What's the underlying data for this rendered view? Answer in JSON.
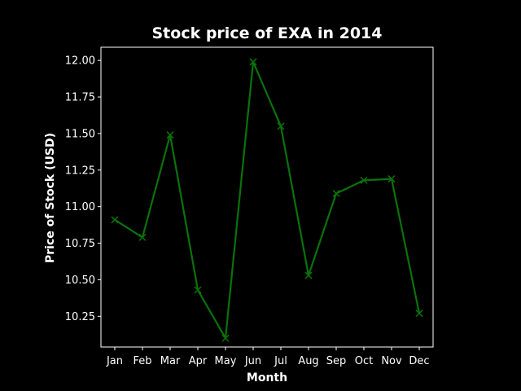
{
  "chart_data": {
    "type": "line",
    "title": "Stock price of EXA in 2014",
    "xlabel": "Month",
    "ylabel": "Price of Stock (USD)",
    "categories": [
      "Jan",
      "Feb",
      "Mar",
      "Apr",
      "May",
      "Jun",
      "Jul",
      "Aug",
      "Sep",
      "Oct",
      "Nov",
      "Dec"
    ],
    "series": [
      {
        "values": [
          10.91,
          10.79,
          11.49,
          10.43,
          10.1,
          11.99,
          11.55,
          10.53,
          11.09,
          11.18,
          11.19,
          10.27
        ],
        "color": "#0a720a",
        "marker": "x"
      }
    ],
    "ylim": [
      10.04,
      12.09
    ],
    "yticks": [
      10.25,
      10.5,
      10.75,
      11.0,
      11.25,
      11.5,
      11.75,
      12.0
    ],
    "ytick_labels": [
      "10.25",
      "10.50",
      "10.75",
      "11.00",
      "11.25",
      "11.50",
      "11.75",
      "12.00"
    ],
    "grid": false,
    "background": "#000000",
    "axis_color": "#ffffff"
  }
}
